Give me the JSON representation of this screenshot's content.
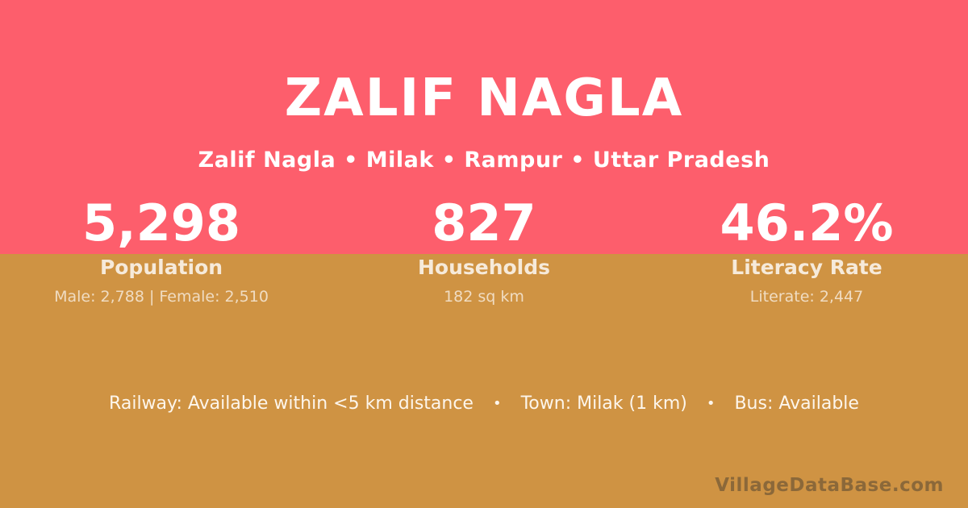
{
  "colors": {
    "top_background": "#FD5E6C",
    "bottom_background": "#CF9343",
    "text_primary": "#FFFFFF",
    "text_label": "#F6EADA",
    "text_detail": "#EED8B4",
    "watermark_gray": "#8F8D8B"
  },
  "header": {
    "title": "ZALIF NAGLA",
    "breadcrumb": "Zalif Nagla • Milak • Rampur • Uttar Pradesh"
  },
  "stats": [
    {
      "value": "5,298",
      "label": "Population",
      "detail": "Male: 2,788 | Female: 2,510"
    },
    {
      "value": "827",
      "label": "Households",
      "detail": "182 sq km"
    },
    {
      "value": "46.2%",
      "label": "Literacy Rate",
      "detail": "Literate: 2,447"
    }
  ],
  "facts": {
    "railway": "Railway: Available within <5 km distance",
    "town": "Town: Milak (1 km)",
    "bus": "Bus: Available",
    "separator": "•"
  },
  "watermark": {
    "label": "VillageDataBase.com"
  }
}
